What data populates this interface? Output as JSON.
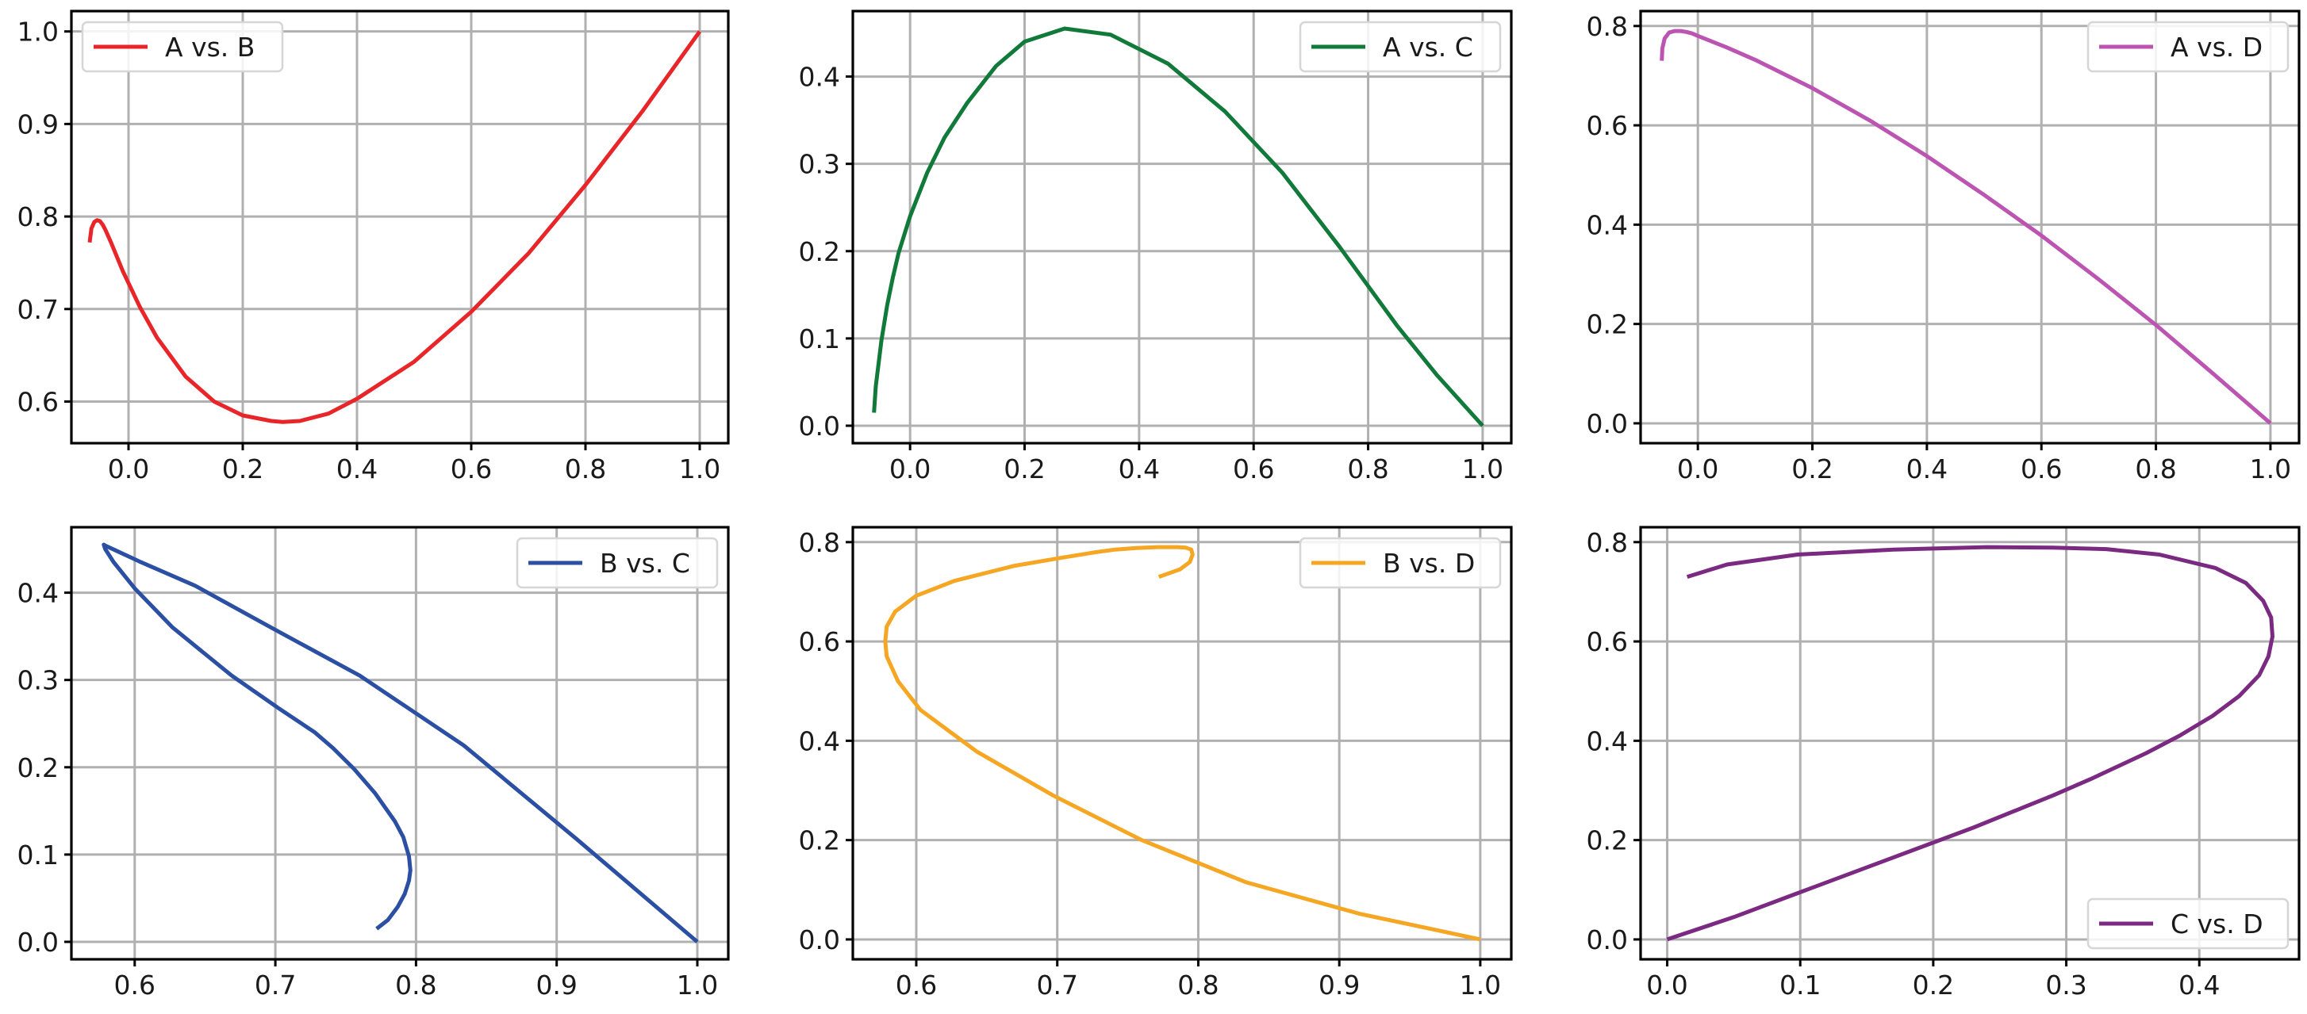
{
  "chart_data": [
    {
      "type": "line",
      "title": "",
      "xlabel": "",
      "ylabel": "",
      "xlim": [
        -0.1,
        1.05
      ],
      "ylim": [
        0.555,
        1.022
      ],
      "xticks": [
        0.0,
        0.2,
        0.4,
        0.6,
        0.8,
        1.0
      ],
      "yticks": [
        0.6,
        0.7,
        0.8,
        0.9,
        1.0
      ],
      "xtick_labels": [
        "0.0",
        "0.2",
        "0.4",
        "0.6",
        "0.8",
        "1.0"
      ],
      "ytick_labels": [
        "0.6",
        "0.7",
        "0.8",
        "0.9",
        "1.0"
      ],
      "grid": true,
      "legend_position": "top-left",
      "series": [
        {
          "name": "A vs. B",
          "color": "#e8262a",
          "x": [
            -0.068,
            -0.065,
            -0.06,
            -0.055,
            -0.05,
            -0.045,
            -0.04,
            -0.03,
            -0.02,
            -0.01,
            0.0,
            0.02,
            0.05,
            0.1,
            0.15,
            0.2,
            0.25,
            0.27,
            0.3,
            0.35,
            0.4,
            0.5,
            0.6,
            0.7,
            0.8,
            0.9,
            1.0
          ],
          "y": [
            0.772,
            0.787,
            0.794,
            0.796,
            0.795,
            0.791,
            0.785,
            0.771,
            0.756,
            0.741,
            0.728,
            0.702,
            0.669,
            0.627,
            0.6,
            0.585,
            0.579,
            0.578,
            0.579,
            0.587,
            0.603,
            0.643,
            0.697,
            0.76,
            0.834,
            0.914,
            1.0
          ]
        }
      ]
    },
    {
      "type": "line",
      "title": "",
      "xlabel": "",
      "ylabel": "",
      "xlim": [
        -0.1,
        1.05
      ],
      "ylim": [
        -0.02,
        0.475
      ],
      "xticks": [
        0.0,
        0.2,
        0.4,
        0.6,
        0.8,
        1.0
      ],
      "yticks": [
        0.0,
        0.1,
        0.2,
        0.3,
        0.4
      ],
      "xtick_labels": [
        "0.0",
        "0.2",
        "0.4",
        "0.6",
        "0.8",
        "1.0"
      ],
      "ytick_labels": [
        "0.0",
        "0.1",
        "0.2",
        "0.3",
        "0.4"
      ],
      "grid": true,
      "legend_position": "top-right",
      "series": [
        {
          "name": "A vs. C",
          "color": "#117a3a",
          "x": [
            -0.063,
            -0.06,
            -0.05,
            -0.04,
            -0.03,
            -0.02,
            0.0,
            0.03,
            0.06,
            0.1,
            0.15,
            0.2,
            0.27,
            0.35,
            0.45,
            0.55,
            0.65,
            0.75,
            0.85,
            0.92,
            1.0
          ],
          "y": [
            0.015,
            0.045,
            0.098,
            0.138,
            0.17,
            0.198,
            0.24,
            0.29,
            0.33,
            0.37,
            0.412,
            0.44,
            0.455,
            0.448,
            0.415,
            0.36,
            0.29,
            0.205,
            0.115,
            0.058,
            0.0
          ]
        }
      ]
    },
    {
      "type": "line",
      "title": "",
      "xlabel": "",
      "ylabel": "",
      "xlim": [
        -0.1,
        1.05
      ],
      "ylim": [
        -0.04,
        0.83
      ],
      "xticks": [
        0.0,
        0.2,
        0.4,
        0.6,
        0.8,
        1.0
      ],
      "yticks": [
        0.0,
        0.2,
        0.4,
        0.6,
        0.8
      ],
      "xtick_labels": [
        "0.0",
        "0.2",
        "0.4",
        "0.6",
        "0.8",
        "1.0"
      ],
      "ytick_labels": [
        "0.0",
        "0.2",
        "0.4",
        "0.6",
        "0.8"
      ],
      "grid": true,
      "legend_position": "top-right",
      "series": [
        {
          "name": "A vs. D",
          "color": "#bb55b1",
          "x": [
            -0.063,
            -0.062,
            -0.058,
            -0.05,
            -0.04,
            -0.03,
            -0.02,
            -0.01,
            0.0,
            0.05,
            0.1,
            0.2,
            0.3,
            0.4,
            0.5,
            0.6,
            0.7,
            0.8,
            0.9,
            1.0
          ],
          "y": [
            0.73,
            0.755,
            0.775,
            0.787,
            0.79,
            0.79,
            0.788,
            0.785,
            0.78,
            0.757,
            0.732,
            0.675,
            0.61,
            0.538,
            0.46,
            0.378,
            0.29,
            0.198,
            0.1,
            0.0
          ]
        }
      ]
    },
    {
      "type": "line",
      "title": "",
      "xlabel": "",
      "ylabel": "",
      "xlim": [
        0.555,
        1.022
      ],
      "ylim": [
        -0.02,
        0.475
      ],
      "xticks": [
        0.6,
        0.7,
        0.8,
        0.9,
        1.0
      ],
      "yticks": [
        0.0,
        0.1,
        0.2,
        0.3,
        0.4
      ],
      "xtick_labels": [
        "0.6",
        "0.7",
        "0.8",
        "0.9",
        "1.0"
      ],
      "ytick_labels": [
        "0.0",
        "0.1",
        "0.2",
        "0.3",
        "0.4"
      ],
      "grid": true,
      "legend_position": "top-right",
      "series": [
        {
          "name": "B vs. C",
          "color": "#2b4fa3",
          "x": [
            0.772,
            0.78,
            0.787,
            0.792,
            0.795,
            0.796,
            0.795,
            0.791,
            0.785,
            0.771,
            0.756,
            0.741,
            0.728,
            0.702,
            0.669,
            0.627,
            0.6,
            0.585,
            0.579,
            0.578,
            0.579,
            0.587,
            0.603,
            0.643,
            0.697,
            0.76,
            0.834,
            0.914,
            1.0
          ],
          "y": [
            0.015,
            0.025,
            0.04,
            0.055,
            0.07,
            0.082,
            0.098,
            0.12,
            0.138,
            0.17,
            0.198,
            0.222,
            0.24,
            0.268,
            0.305,
            0.36,
            0.405,
            0.435,
            0.45,
            0.455,
            0.454,
            0.448,
            0.436,
            0.408,
            0.36,
            0.305,
            0.225,
            0.118,
            0.0
          ]
        }
      ]
    },
    {
      "type": "line",
      "title": "",
      "xlabel": "",
      "ylabel": "",
      "xlim": [
        0.555,
        1.022
      ],
      "ylim": [
        -0.04,
        0.83
      ],
      "xticks": [
        0.6,
        0.7,
        0.8,
        0.9,
        1.0
      ],
      "yticks": [
        0.0,
        0.2,
        0.4,
        0.6,
        0.8
      ],
      "xtick_labels": [
        "0.6",
        "0.7",
        "0.8",
        "0.9",
        "1.0"
      ],
      "ytick_labels": [
        "0.0",
        "0.2",
        "0.4",
        "0.6",
        "0.8"
      ],
      "grid": true,
      "legend_position": "top-right",
      "series": [
        {
          "name": "B vs. D",
          "color": "#f5a623",
          "x": [
            0.772,
            0.787,
            0.794,
            0.796,
            0.795,
            0.791,
            0.785,
            0.771,
            0.756,
            0.741,
            0.728,
            0.702,
            0.669,
            0.627,
            0.6,
            0.585,
            0.579,
            0.578,
            0.579,
            0.587,
            0.603,
            0.643,
            0.697,
            0.76,
            0.834,
            0.914,
            1.0
          ],
          "y": [
            0.73,
            0.745,
            0.76,
            0.775,
            0.785,
            0.789,
            0.79,
            0.79,
            0.788,
            0.785,
            0.78,
            0.768,
            0.752,
            0.722,
            0.692,
            0.66,
            0.63,
            0.6,
            0.57,
            0.52,
            0.462,
            0.378,
            0.29,
            0.2,
            0.115,
            0.052,
            0.0
          ]
        }
      ]
    },
    {
      "type": "line",
      "title": "",
      "xlabel": "",
      "ylabel": "",
      "xlim": [
        -0.02,
        0.475
      ],
      "ylim": [
        -0.04,
        0.83
      ],
      "xticks": [
        0.0,
        0.1,
        0.2,
        0.3,
        0.4
      ],
      "yticks": [
        0.0,
        0.2,
        0.4,
        0.6,
        0.8
      ],
      "xtick_labels": [
        "0.0",
        "0.1",
        "0.2",
        "0.3",
        "0.4"
      ],
      "ytick_labels": [
        "0.0",
        "0.2",
        "0.4",
        "0.6",
        "0.8"
      ],
      "grid": true,
      "legend_position": "bottom-right",
      "series": [
        {
          "name": "C vs. D",
          "color": "#7b2a82",
          "x": [
            0.015,
            0.045,
            0.098,
            0.17,
            0.24,
            0.29,
            0.33,
            0.37,
            0.412,
            0.435,
            0.448,
            0.454,
            0.455,
            0.452,
            0.445,
            0.43,
            0.41,
            0.385,
            0.36,
            0.32,
            0.29,
            0.23,
            0.165,
            0.1,
            0.05,
            0.0
          ],
          "y": [
            0.73,
            0.755,
            0.775,
            0.785,
            0.79,
            0.789,
            0.786,
            0.775,
            0.748,
            0.718,
            0.682,
            0.648,
            0.61,
            0.57,
            0.532,
            0.49,
            0.45,
            0.41,
            0.375,
            0.325,
            0.29,
            0.225,
            0.16,
            0.095,
            0.045,
            0.0
          ]
        }
      ]
    }
  ]
}
